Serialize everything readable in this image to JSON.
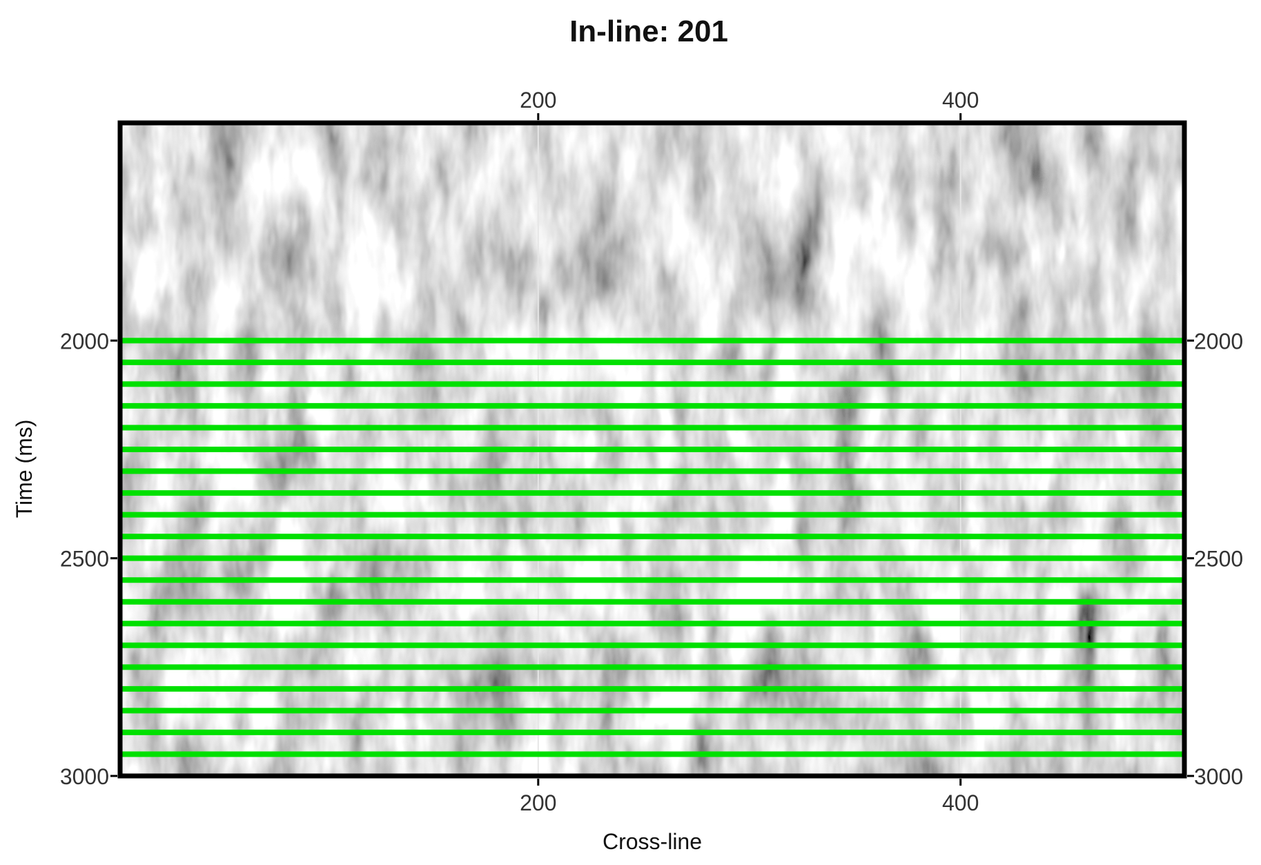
{
  "chart_data": {
    "type": "heatmap",
    "title": "In-line: 201",
    "xlabel": "Cross-line",
    "ylabel": "Time (ms)",
    "xlim": [
      2,
      506
    ],
    "ylim": [
      1500,
      3000
    ],
    "y_inverted": true,
    "x_ticks": [
      200,
      400
    ],
    "x_tick_labels": [
      "200",
      "400"
    ],
    "y_ticks": [
      2000,
      2500,
      3000
    ],
    "y_tick_labels": [
      "2000",
      "2500",
      "3000"
    ],
    "grid": true,
    "colormap": "grayscale",
    "overlay": {
      "name": "horizons",
      "color": "#00e000",
      "y_values": [
        2000,
        2050,
        2100,
        2150,
        2200,
        2250,
        2300,
        2350,
        2400,
        2450,
        2500,
        2550,
        2600,
        2650,
        2700,
        2750,
        2800,
        2850,
        2900,
        2950
      ]
    }
  }
}
